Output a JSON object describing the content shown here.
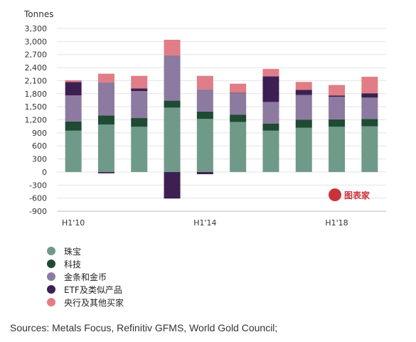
{
  "chart_data": {
    "type": "bar",
    "stacked": true,
    "ylabel": "Tonnes",
    "ylim": [
      -900,
      3300
    ],
    "yticks": [
      "3,300",
      "3,000",
      "2,700",
      "2,400",
      "2,100",
      "1,800",
      "1,500",
      "1,200",
      "900",
      "600",
      "300",
      "0",
      "-300",
      "-600",
      "-900"
    ],
    "ytick_values": [
      3300,
      3000,
      2700,
      2400,
      2100,
      1800,
      1500,
      1200,
      900,
      600,
      300,
      0,
      -300,
      -600,
      -900
    ],
    "xtick_labels": [
      {
        "label": "H1'10",
        "index": 0
      },
      {
        "label": "H1'14",
        "index": 4
      },
      {
        "label": "H1'18",
        "index": 8
      }
    ],
    "n_periods": 10,
    "grid": true,
    "series": [
      {
        "name": "珠宝",
        "color": "#6f9a8a",
        "values": [
          950,
          1090,
          1040,
          1480,
          1220,
          1150,
          950,
          1020,
          1040,
          1050
        ]
      },
      {
        "name": "科技",
        "color": "#1f4a33",
        "values": [
          210,
          210,
          200,
          160,
          170,
          170,
          160,
          180,
          170,
          170
        ]
      },
      {
        "name": "金条和金币",
        "color": "#8c7aa0",
        "values": [
          600,
          760,
          620,
          1040,
          510,
          490,
          500,
          570,
          520,
          490
        ]
      },
      {
        "name": "ETF及类似产品",
        "color": "#3e1f52",
        "values": [
          310,
          -30,
          60,
          -610,
          -50,
          10,
          590,
          120,
          30,
          100
        ]
      },
      {
        "name": "央行及其他买家",
        "color": "#e07d86",
        "values": [
          40,
          200,
          290,
          360,
          310,
          210,
          170,
          180,
          240,
          380
        ]
      }
    ],
    "watermark": "图表家"
  },
  "source_text": "Sources: Metals Focus, Refinitiv GFMS, World Gold Council;"
}
